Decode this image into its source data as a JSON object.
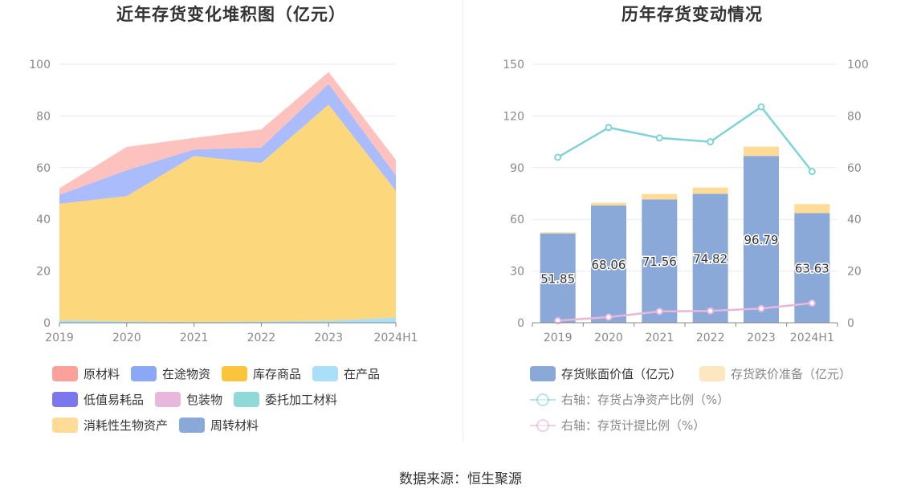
{
  "source": "数据来源：恒生聚源",
  "left_chart": {
    "title": "近年存货变化堆积图（亿元）",
    "legend": [
      {
        "label": "原材料",
        "color": "#fca19a"
      },
      {
        "label": "在途物资",
        "color": "#8ba8f6"
      },
      {
        "label": "库存商品",
        "color": "#fbc43a"
      },
      {
        "label": "在产品",
        "color": "#a9dff8"
      },
      {
        "label": "低值易耗品",
        "color": "#7b78ef"
      },
      {
        "label": "包装物",
        "color": "#e8b7dc"
      },
      {
        "label": "委托加工材料",
        "color": "#8fd9d9"
      },
      {
        "label": "消耗性生物资产",
        "color": "#fedb96"
      },
      {
        "label": "周转材料",
        "color": "#8aa9d8"
      }
    ]
  },
  "right_chart": {
    "title": "历年存货变动情况",
    "legend": [
      {
        "label": "存货账面价值（亿元）",
        "color": "#8aa9d8"
      },
      {
        "label": "存货跌价准备（亿元）",
        "color": "#fde7c0"
      },
      {
        "label": "右轴：存货占净资产比例（%）",
        "color": "#7fd3d6"
      },
      {
        "label": "右轴：存货计提比例（%）",
        "color": "#e8b7dc"
      }
    ]
  },
  "chart_data": [
    {
      "type": "area",
      "stacked": true,
      "title": "近年存货变化堆积图（亿元）",
      "categories": [
        "2019",
        "2020",
        "2021",
        "2022",
        "2023",
        "2024H1"
      ],
      "ylim": [
        0,
        100
      ],
      "yticks": [
        0,
        20,
        40,
        60,
        80,
        100
      ],
      "grid": true,
      "legend_position": "bottom",
      "series": [
        {
          "name": "在产品",
          "color": "#a9dff8",
          "values": [
            1.0,
            0.5,
            0.3,
            0.5,
            0.8,
            2.0
          ]
        },
        {
          "name": "库存商品",
          "color": "#fdd77c",
          "values": [
            45.0,
            48.5,
            64.2,
            61.3,
            83.6,
            49.0
          ]
        },
        {
          "name": "在途物资",
          "color": "#aabcfb",
          "values": [
            3.5,
            10.0,
            2.5,
            6.0,
            8.0,
            6.0
          ]
        },
        {
          "name": "原材料",
          "color": "#fdc2bd",
          "values": [
            2.5,
            9.0,
            4.5,
            7.0,
            4.6,
            6.0
          ]
        }
      ]
    },
    {
      "type": "bar",
      "stacked": true,
      "title": "历年存货变动情况",
      "categories": [
        "2019",
        "2020",
        "2021",
        "2022",
        "2023",
        "2024H1"
      ],
      "ylim": [
        0,
        150
      ],
      "yticks": [
        0,
        30,
        60,
        90,
        120,
        150
      ],
      "y2lim": [
        0,
        100
      ],
      "y2ticks": [
        0,
        20,
        40,
        60,
        80,
        100
      ],
      "grid": true,
      "legend_position": "bottom",
      "series": [
        {
          "name": "存货账面价值（亿元）",
          "type": "bar",
          "color": "#8aa9d8",
          "values": [
            51.85,
            68.06,
            71.56,
            74.82,
            96.79,
            63.63
          ],
          "labels": [
            "51.85",
            "68.06",
            "71.56",
            "74.82",
            "96.79",
            "63.63"
          ]
        },
        {
          "name": "存货跌价准备（亿元）",
          "type": "bar",
          "color": "#fedb96",
          "values": [
            0.6,
            1.5,
            3.2,
            3.6,
            5.4,
            5.2
          ]
        },
        {
          "name": "右轴：存货占净资产比例（%）",
          "type": "line",
          "axis": "right",
          "color": "#7fd3d6",
          "values": [
            64.0,
            75.5,
            71.5,
            70.0,
            83.5,
            58.5
          ]
        },
        {
          "name": "右轴：存货计提比例（%）",
          "type": "line",
          "axis": "right",
          "color": "#e8b7dc",
          "values": [
            0.8,
            2.2,
            4.4,
            4.6,
            5.5,
            7.6
          ]
        }
      ]
    }
  ]
}
